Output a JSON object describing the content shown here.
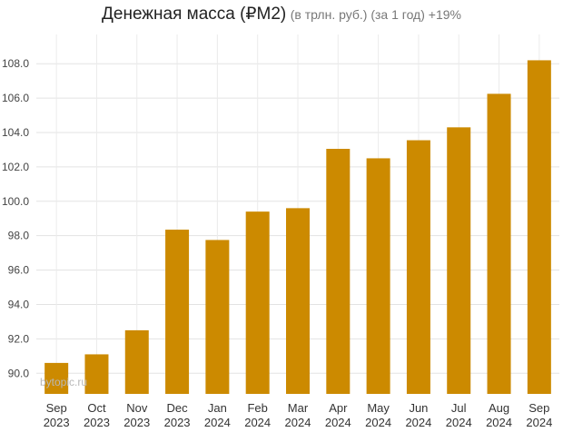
{
  "chart_data": {
    "type": "bar",
    "title": "Денежная масса (₽M2)",
    "subtitle": "(в трлн. руб.) (за 1 год) +19%",
    "categories": [
      [
        "Sep",
        "2023"
      ],
      [
        "Oct",
        "2023"
      ],
      [
        "Nov",
        "2023"
      ],
      [
        "Dec",
        "2023"
      ],
      [
        "Jan",
        "2024"
      ],
      [
        "Feb",
        "2024"
      ],
      [
        "Mar",
        "2024"
      ],
      [
        "Apr",
        "2024"
      ],
      [
        "May",
        "2024"
      ],
      [
        "Jun",
        "2024"
      ],
      [
        "Jul",
        "2024"
      ],
      [
        "Aug",
        "2024"
      ],
      [
        "Sep",
        "2024"
      ]
    ],
    "values": [
      90.6,
      91.1,
      92.5,
      98.35,
      97.75,
      99.4,
      99.6,
      103.05,
      102.5,
      103.55,
      104.3,
      106.25,
      108.2
    ],
    "ylim": [
      88.8,
      109.7
    ],
    "yticks": [
      "90.0",
      "92.0",
      "94.0",
      "96.0",
      "98.0",
      "100.0",
      "102.0",
      "104.0",
      "106.0",
      "108.0"
    ],
    "grid": true,
    "bar_color": "#cc8a00",
    "xlabel": "",
    "ylabel": ""
  },
  "watermark": "bytopic.ru"
}
